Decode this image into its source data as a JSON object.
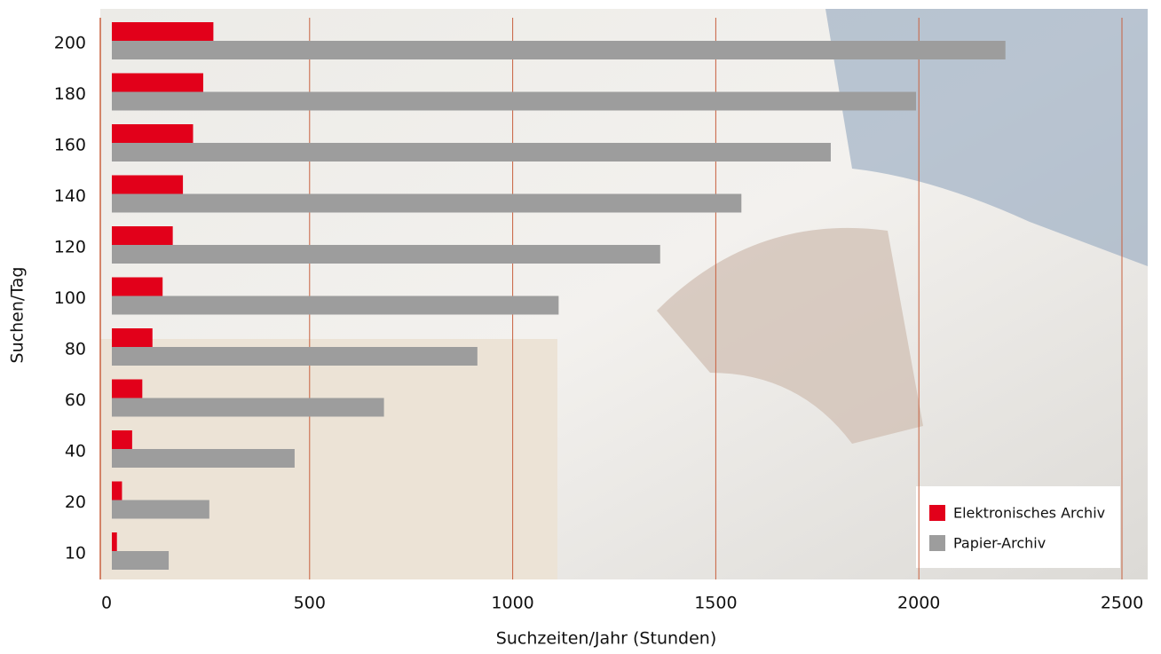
{
  "chart_data": {
    "type": "hbar",
    "xlabel": "Suchzeiten/Jahr (Stunden)",
    "ylabel": "Suchen/Tag",
    "categories": [
      "10",
      "20",
      "40",
      "60",
      "80",
      "100",
      "120",
      "140",
      "160",
      "180",
      "200"
    ],
    "series": [
      {
        "name": "Elektronisches Archiv",
        "color": "#e2001a",
        "values": [
          12.5,
          25,
          50,
          75,
          100,
          125,
          150,
          175,
          200,
          225,
          250
        ]
      },
      {
        "name": "Papier-Archiv",
        "color": "#9d9d9d",
        "values": [
          140,
          240,
          450,
          670,
          900,
          1100,
          1350,
          1550,
          1770,
          1980,
          2200
        ]
      }
    ],
    "xlim": [
      0,
      2500
    ],
    "xticks": [
      0,
      500,
      1000,
      1500,
      2000,
      2500
    ],
    "grid": true,
    "legend": "lower right"
  }
}
